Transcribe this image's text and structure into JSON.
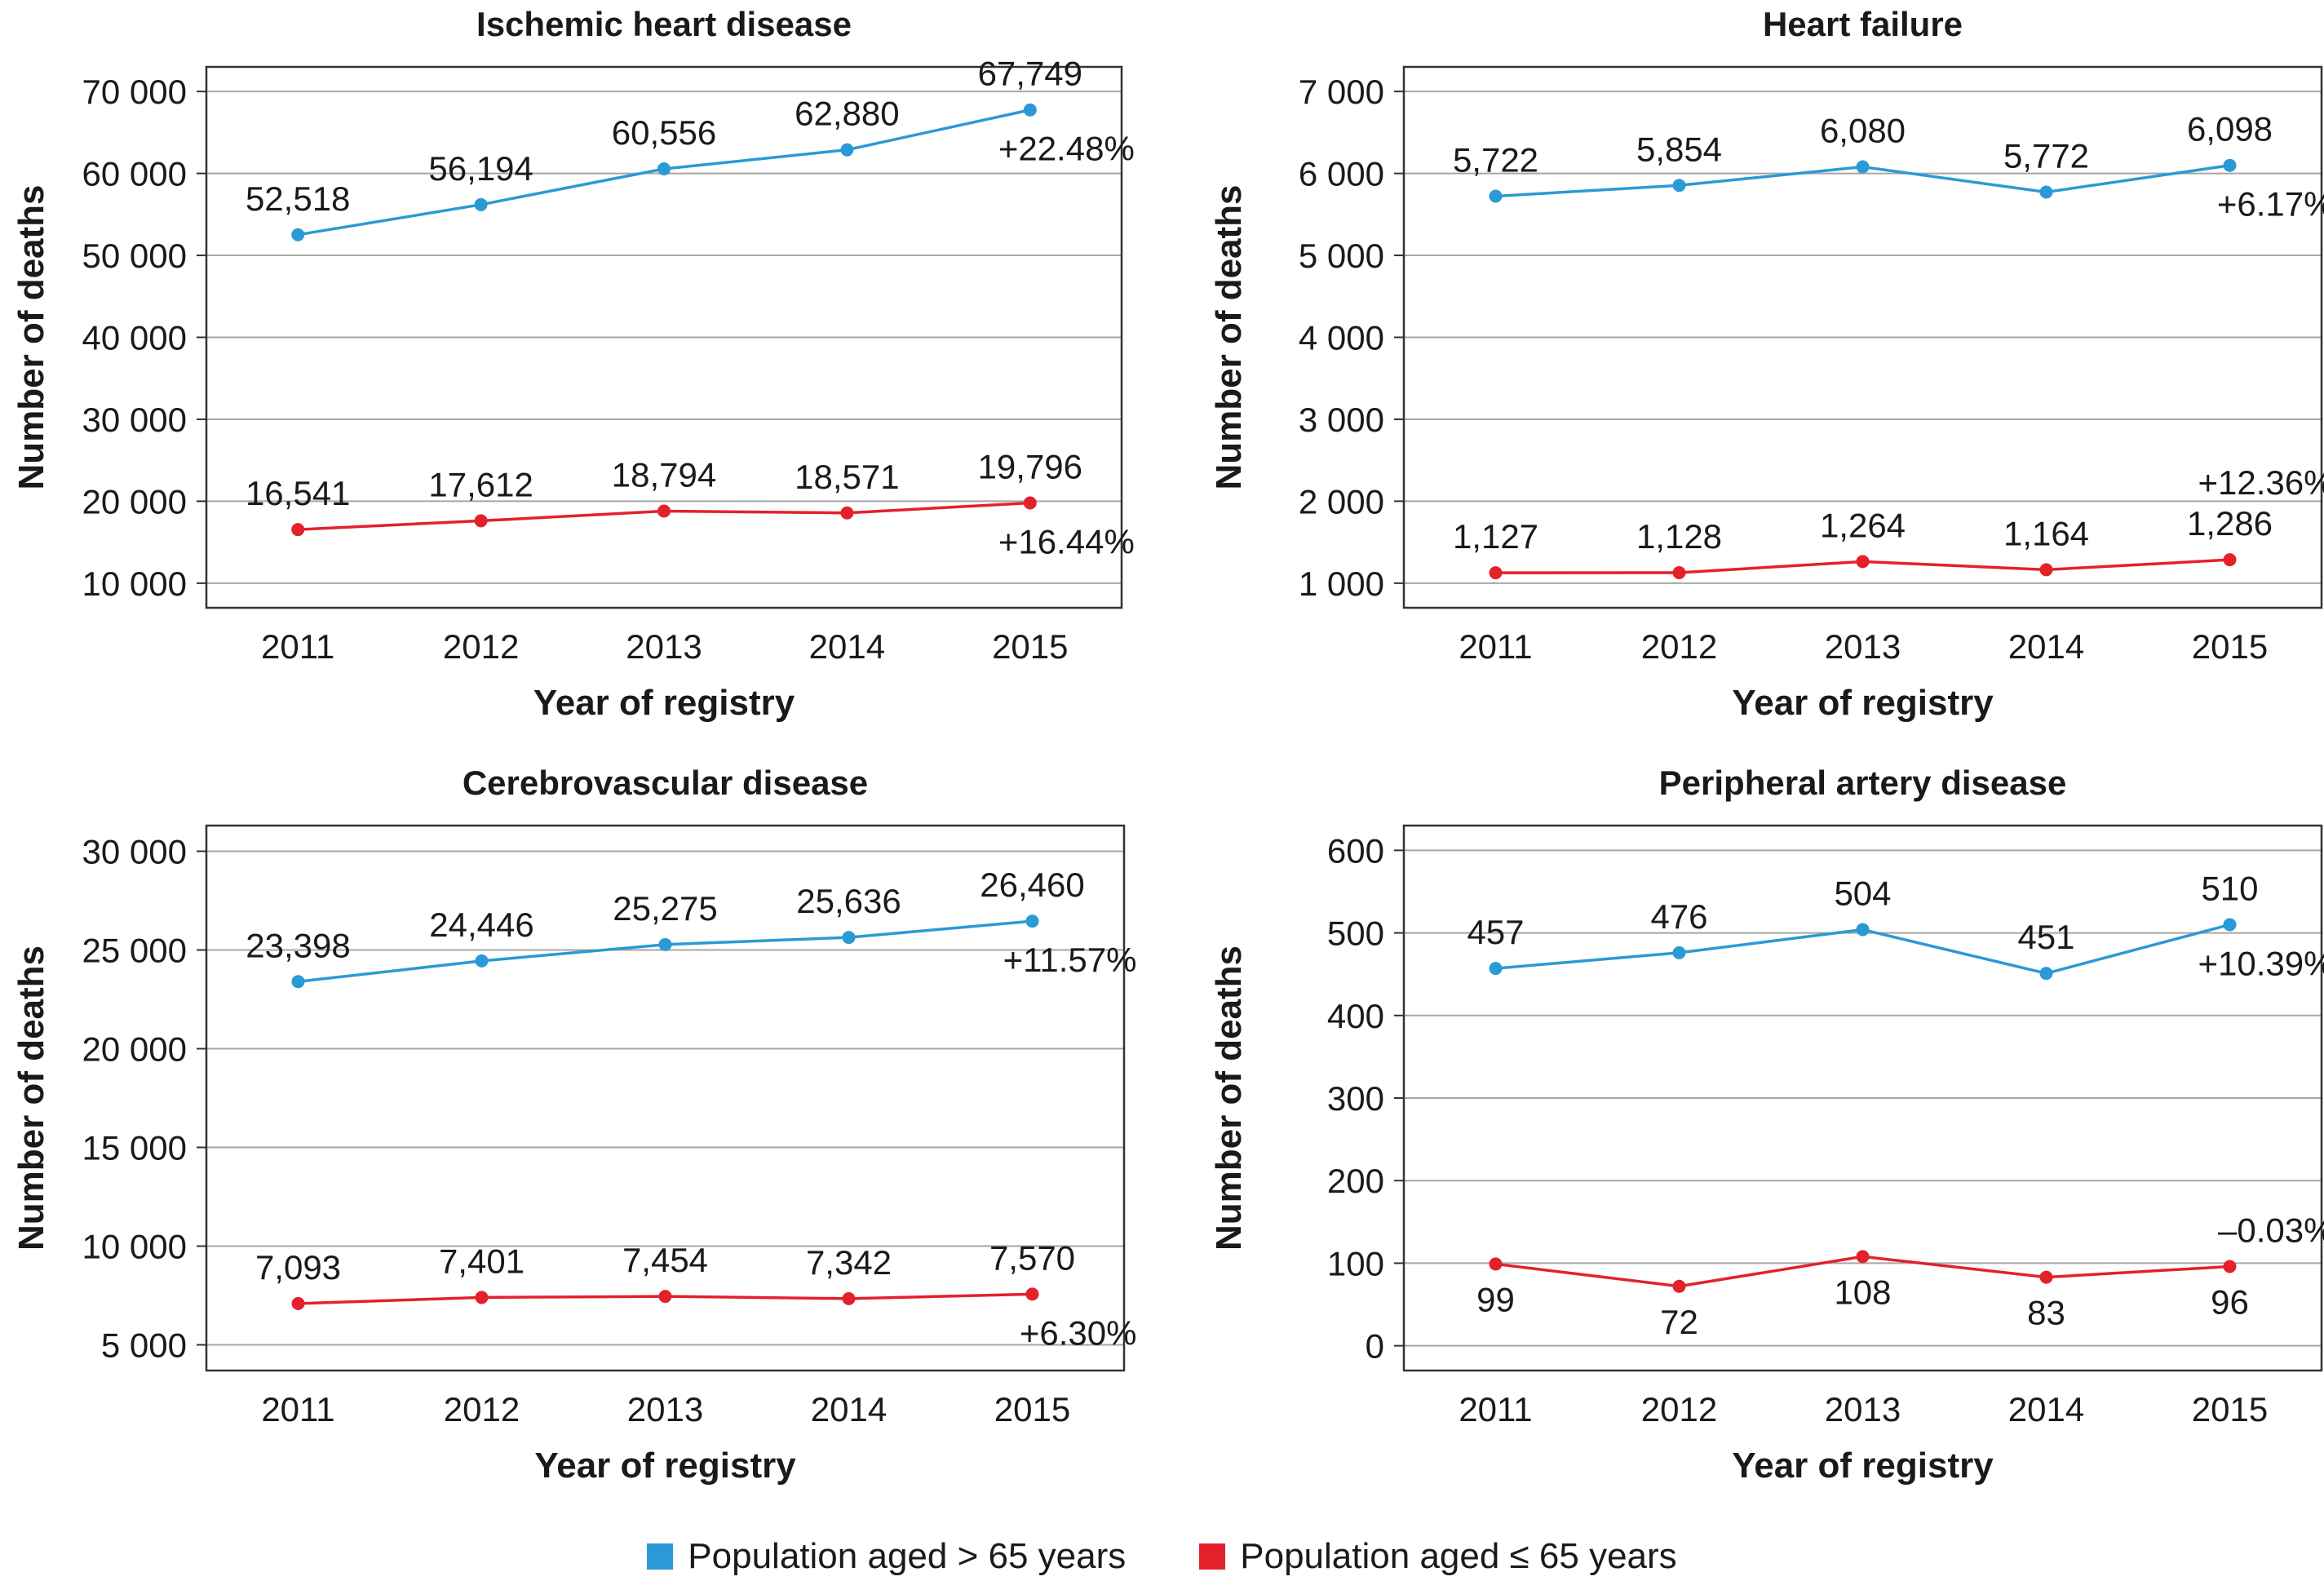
{
  "legend": [
    {
      "label": "Population aged > 65 years",
      "color": "#2a9ad6"
    },
    {
      "label": "Population aged ≤ 65 years",
      "color": "#e3212b"
    }
  ],
  "chart_data": [
    {
      "type": "line",
      "title": "Ischemic heart disease",
      "xlabel": "Year of registry",
      "ylabel": "Number of deaths",
      "categories": [
        "2011",
        "2012",
        "2013",
        "2014",
        "2015"
      ],
      "ylim": [
        7000,
        73000
      ],
      "yticks": [
        10000,
        20000,
        30000,
        40000,
        50000,
        60000,
        70000
      ],
      "ytick_labels": [
        "10 000",
        "20 000",
        "30 000",
        "40 000",
        "50 000",
        "60 000",
        "70 000"
      ],
      "grid": true,
      "series": [
        {
          "name": "Population aged > 65 years",
          "color": "#2a9ad6",
          "values": [
            52518,
            56194,
            60556,
            62880,
            67749
          ],
          "labels": [
            "52,518",
            "56,194",
            "60,556",
            "62,880",
            "67,749"
          ],
          "label_pos": [
            "above",
            "above",
            "above",
            "above",
            "above"
          ],
          "change": "+22.48%",
          "change_pos": "below"
        },
        {
          "name": "Population aged ≤ 65 years",
          "color": "#e3212b",
          "values": [
            16541,
            17612,
            18794,
            18571,
            19796
          ],
          "labels": [
            "16,541",
            "17,612",
            "18,794",
            "18,571",
            "19,796"
          ],
          "label_pos": [
            "above",
            "above",
            "above",
            "above",
            "above"
          ],
          "change": "+16.44%",
          "change_pos": "below"
        }
      ]
    },
    {
      "type": "line",
      "title": "Heart failure",
      "xlabel": "Year of registry",
      "ylabel": "Number of deaths",
      "categories": [
        "2011",
        "2012",
        "2013",
        "2014",
        "2015"
      ],
      "ylim": [
        700,
        7300
      ],
      "yticks": [
        1000,
        2000,
        3000,
        4000,
        5000,
        6000,
        7000
      ],
      "ytick_labels": [
        "1 000",
        "2 000",
        "3 000",
        "4 000",
        "5 000",
        "6 000",
        "7 000"
      ],
      "grid": true,
      "series": [
        {
          "name": "Population aged > 65 years",
          "color": "#2a9ad6",
          "values": [
            5722,
            5854,
            6080,
            5772,
            6098
          ],
          "labels": [
            "5,722",
            "5,854",
            "6,080",
            "5,772",
            "6,098"
          ],
          "label_pos": [
            "above",
            "above",
            "above",
            "above",
            "above"
          ],
          "change": "+6.17%",
          "change_pos": "below"
        },
        {
          "name": "Population aged ≤ 65 years",
          "color": "#e3212b",
          "values": [
            1127,
            1128,
            1264,
            1164,
            1286
          ],
          "labels": [
            "1,127",
            "1,128",
            "1,264",
            "1,164",
            "1,286"
          ],
          "label_pos": [
            "above",
            "above",
            "above",
            "above",
            "above"
          ],
          "change": "+12.36%",
          "change_pos": "above-far"
        }
      ]
    },
    {
      "type": "line",
      "title": "Cerebrovascular disease",
      "xlabel": "Year of registry",
      "ylabel": "Number of deaths",
      "categories": [
        "2011",
        "2012",
        "2013",
        "2014",
        "2015"
      ],
      "ylim": [
        3700,
        31300
      ],
      "yticks": [
        5000,
        10000,
        15000,
        20000,
        25000,
        30000
      ],
      "ytick_labels": [
        "5 000",
        "10 000",
        "15 000",
        "20 000",
        "25 000",
        "30 000"
      ],
      "grid": true,
      "series": [
        {
          "name": "Population aged > 65 years",
          "color": "#2a9ad6",
          "values": [
            23398,
            24446,
            25275,
            25636,
            26460
          ],
          "labels": [
            "23,398",
            "24,446",
            "25,275",
            "25,636",
            "26,460"
          ],
          "label_pos": [
            "above",
            "above",
            "above",
            "above",
            "above"
          ],
          "change": "+11.57%",
          "change_pos": "below"
        },
        {
          "name": "Population aged ≤ 65 years",
          "color": "#e3212b",
          "values": [
            7093,
            7401,
            7454,
            7342,
            7570
          ],
          "labels": [
            "7,093",
            "7,401",
            "7,454",
            "7,342",
            "7,570"
          ],
          "label_pos": [
            "above",
            "above",
            "above",
            "above",
            "above"
          ],
          "change": "+6.30%",
          "change_pos": "below"
        }
      ]
    },
    {
      "type": "line",
      "title": "Peripheral artery disease",
      "xlabel": "Year of registry",
      "ylabel": "Number of deaths",
      "categories": [
        "2011",
        "2012",
        "2013",
        "2014",
        "2015"
      ],
      "ylim": [
        -30,
        630
      ],
      "yticks": [
        0,
        100,
        200,
        300,
        400,
        500,
        600
      ],
      "ytick_labels": [
        "0",
        "100",
        "200",
        "300",
        "400",
        "500",
        "600"
      ],
      "grid": true,
      "series": [
        {
          "name": "Population aged > 65 years",
          "color": "#2a9ad6",
          "values": [
            457,
            476,
            504,
            451,
            510
          ],
          "labels": [
            "457",
            "476",
            "504",
            "451",
            "510"
          ],
          "label_pos": [
            "above",
            "above",
            "above",
            "above",
            "above"
          ],
          "change": "+10.39%",
          "change_pos": "below"
        },
        {
          "name": "Population aged ≤ 65 years",
          "color": "#e3212b",
          "values": [
            99,
            72,
            108,
            83,
            96
          ],
          "labels": [
            "99",
            "72",
            "108",
            "83",
            "96"
          ],
          "label_pos": [
            "below",
            "below",
            "below",
            "below",
            "below"
          ],
          "change": "–0.03%",
          "change_pos": "above"
        }
      ]
    }
  ]
}
